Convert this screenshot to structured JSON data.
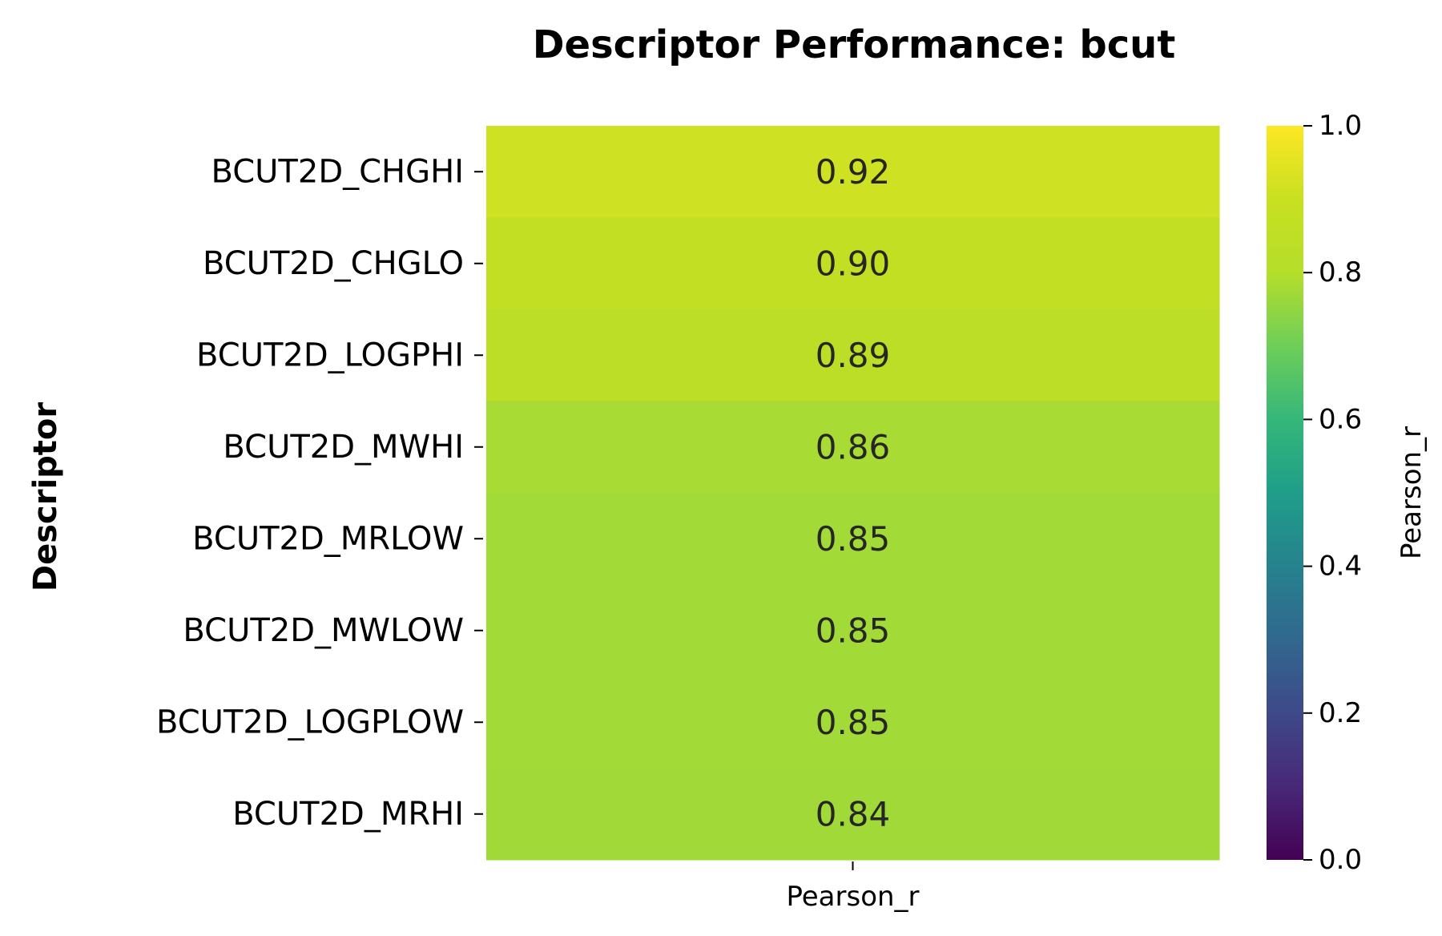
{
  "chart_data": {
    "type": "heatmap",
    "title": "Descriptor Performance: bcut",
    "ylabel": "Descriptor",
    "xlabel": "",
    "columns": [
      "Pearson_r"
    ],
    "rows": [
      "BCUT2D_CHGHI",
      "BCUT2D_CHGLO",
      "BCUT2D_LOGPHI",
      "BCUT2D_MWHI",
      "BCUT2D_MRLOW",
      "BCUT2D_MWLOW",
      "BCUT2D_LOGPLOW",
      "BCUT2D_MRHI"
    ],
    "values": [
      [
        0.92
      ],
      [
        0.9
      ],
      [
        0.89
      ],
      [
        0.86
      ],
      [
        0.85
      ],
      [
        0.85
      ],
      [
        0.85
      ],
      [
        0.84
      ]
    ],
    "value_labels": [
      "0.92",
      "0.90",
      "0.89",
      "0.86",
      "0.85",
      "0.85",
      "0.85",
      "0.84"
    ],
    "colorscale": "viridis",
    "colorbar": {
      "label": "Pearson_r",
      "range": [
        0.0,
        1.0
      ],
      "ticks": [
        "0.0",
        "0.2",
        "0.4",
        "0.6",
        "0.8",
        "1.0"
      ]
    }
  }
}
